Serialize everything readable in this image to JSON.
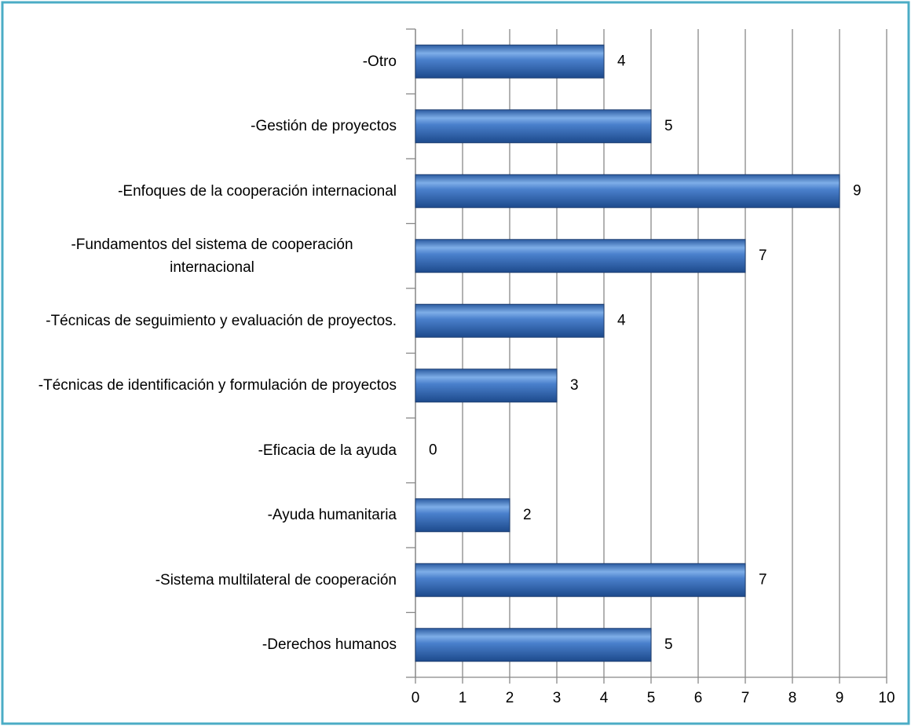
{
  "chart_data": {
    "type": "bar",
    "orientation": "horizontal",
    "categories": [
      "-Otro",
      "-Gestión de proyectos",
      "-Enfoques de la cooperación internacional",
      "-Fundamentos del sistema de cooperación internacional",
      "-Técnicas de seguimiento y evaluación de proyectos.",
      "-Técnicas de identificación y formulación de proyectos",
      "-Eficacia de la ayuda",
      "-Ayuda humanitaria",
      "-Sistema multilateral de cooperación",
      "-Derechos humanos"
    ],
    "values": [
      4,
      5,
      9,
      7,
      4,
      3,
      0,
      2,
      7,
      5
    ],
    "color": "#4f81bd",
    "xlim": [
      0,
      10
    ],
    "xticks": [
      0,
      1,
      2,
      3,
      4,
      5,
      6,
      7,
      8,
      9,
      10
    ],
    "grid": true
  }
}
